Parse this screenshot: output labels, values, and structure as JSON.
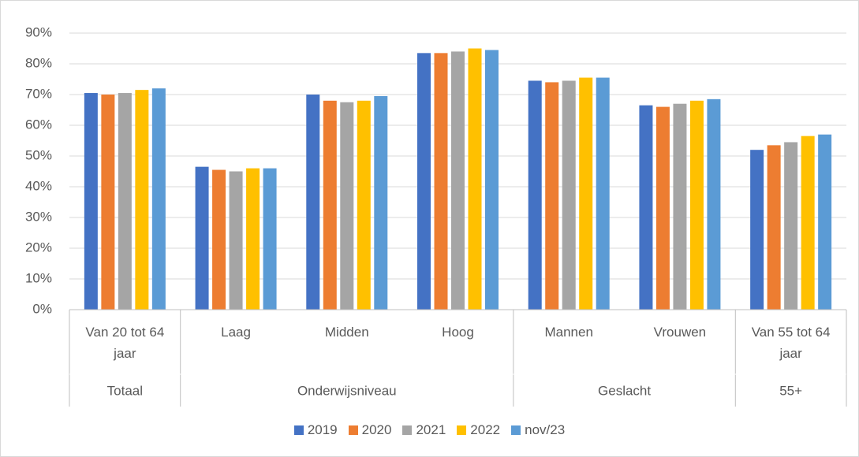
{
  "chart_data": {
    "type": "bar",
    "groups": [
      {
        "name": "Totaal",
        "categories": [
          "Van 20 tot 64 jaar"
        ]
      },
      {
        "name": "Onderwijsniveau",
        "categories": [
          "Laag",
          "Midden",
          "Hoog"
        ]
      },
      {
        "name": "Geslacht",
        "categories": [
          "Mannen",
          "Vrouwen"
        ]
      },
      {
        "name": "55+",
        "categories": [
          "Van 55 tot 64 jaar"
        ]
      }
    ],
    "series": [
      {
        "name": "2019",
        "color": "#4472c4",
        "values": [
          70.5,
          46.5,
          70,
          83.5,
          74.5,
          66.5,
          52
        ]
      },
      {
        "name": "2020",
        "color": "#ed7d31",
        "values": [
          70,
          45.5,
          68,
          83.5,
          74,
          66,
          53.5
        ]
      },
      {
        "name": "2021",
        "color": "#a5a5a5",
        "values": [
          70.5,
          45,
          67.5,
          84,
          74.5,
          67,
          54.5
        ]
      },
      {
        "name": "2022",
        "color": "#ffc000",
        "values": [
          71.5,
          46,
          68,
          85,
          75.5,
          68,
          56.5
        ]
      },
      {
        "name": "nov/23",
        "color": "#5b9bd5",
        "values": [
          72,
          46,
          69.5,
          84.5,
          75.5,
          68.5,
          57
        ]
      }
    ],
    "ylim": [
      0,
      90
    ],
    "yticks": [
      {
        "value": 0,
        "label": "0%"
      },
      {
        "value": 10,
        "label": "10%"
      },
      {
        "value": 20,
        "label": "20%"
      },
      {
        "value": 30,
        "label": "30%"
      },
      {
        "value": 40,
        "label": "40%"
      },
      {
        "value": 50,
        "label": "50%"
      },
      {
        "value": 60,
        "label": "60%"
      },
      {
        "value": 70,
        "label": "70%"
      },
      {
        "value": 80,
        "label": "80%"
      },
      {
        "value": 90,
        "label": "90%"
      }
    ],
    "grid": true,
    "legend": "bottom"
  }
}
